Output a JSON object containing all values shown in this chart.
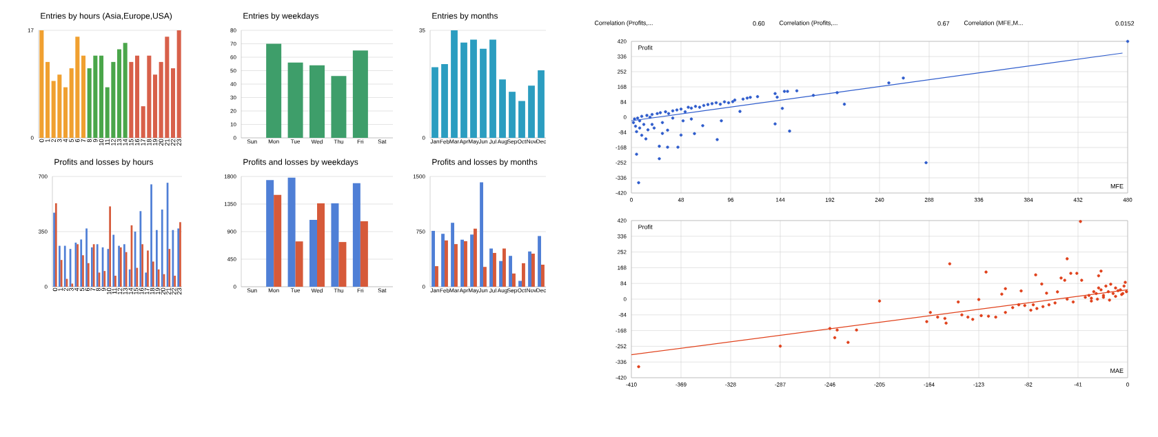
{
  "chart_data": [
    {
      "type": "bar",
      "title": "Entries by hours (Asia,Europe,USA)",
      "categories": [
        "0",
        "1",
        "2",
        "3",
        "4",
        "5",
        "6",
        "7",
        "8",
        "9",
        "10",
        "11",
        "12",
        "13",
        "14",
        "15",
        "16",
        "17",
        "18",
        "19",
        "20",
        "21",
        "22",
        "23"
      ],
      "values": [
        17,
        12,
        9,
        10,
        8,
        11,
        16,
        13,
        11,
        13,
        13,
        8,
        12,
        14,
        15,
        12,
        13,
        5,
        13,
        10,
        12,
        16,
        11,
        17
      ],
      "colors": [
        "#f0a030",
        "#f0a030",
        "#f0a030",
        "#f0a030",
        "#f0a030",
        "#f0a030",
        "#f0a030",
        "#f0a030",
        "#4aa64a",
        "#4aa64a",
        "#4aa64a",
        "#4aa64a",
        "#4aa64a",
        "#4aa64a",
        "#4aa64a",
        "#d8604a",
        "#d8604a",
        "#d8604a",
        "#d8604a",
        "#d8604a",
        "#d8604a",
        "#d8604a",
        "#d8604a",
        "#d8604a"
      ],
      "ylim": [
        0,
        17
      ],
      "yticks": [
        0,
        17
      ],
      "grid": "y"
    },
    {
      "type": "bar",
      "title": "Entries by weekdays",
      "categories": [
        "Sun",
        "Mon",
        "Tue",
        "Wed",
        "Thu",
        "Fri",
        "Sat"
      ],
      "values": [
        0,
        70,
        56,
        54,
        46,
        65,
        0
      ],
      "color": "#3e9e6a",
      "ylim": [
        0,
        80
      ],
      "yticks": [
        0,
        10,
        20,
        30,
        40,
        50,
        60,
        70,
        80
      ],
      "grid": "y"
    },
    {
      "type": "bar",
      "title": "Entries by months",
      "categories": [
        "Jan",
        "Feb",
        "Mar",
        "Apr",
        "May",
        "Jun",
        "Jul",
        "Aug",
        "Sep",
        "Oct",
        "Nov",
        "Dec"
      ],
      "values": [
        23,
        24,
        35,
        31,
        32,
        29,
        32,
        19,
        15,
        12,
        17,
        22
      ],
      "color": "#2b9dc0",
      "ylim": [
        0,
        35
      ],
      "yticks": [
        0,
        35
      ],
      "grid": "y"
    },
    {
      "type": "bar",
      "title": "Profits and losses by hours",
      "categories": [
        "0",
        "1",
        "2",
        "3",
        "4",
        "5",
        "6",
        "7",
        "8",
        "9",
        "10",
        "11",
        "12",
        "13",
        "14",
        "15",
        "16",
        "17",
        "18",
        "19",
        "20",
        "21",
        "22",
        "23"
      ],
      "series": [
        {
          "color": "#4f7fd6",
          "values": [
            470,
            260,
            260,
            240,
            280,
            300,
            370,
            250,
            270,
            250,
            240,
            330,
            260,
            270,
            110,
            350,
            480,
            90,
            650,
            360,
            490,
            660,
            360,
            370
          ]
        },
        {
          "color": "#d65a3a",
          "values": [
            530,
            170,
            50,
            20,
            270,
            200,
            150,
            270,
            90,
            100,
            510,
            70,
            250,
            220,
            390,
            120,
            270,
            230,
            160,
            110,
            80,
            240,
            70,
            410
          ]
        }
      ],
      "ylim": [
        0,
        700
      ],
      "yticks": [
        0,
        350,
        700
      ],
      "grid": "y"
    },
    {
      "type": "bar",
      "title": "Profits and losses by weekdays",
      "categories": [
        "Sun",
        "Mon",
        "Tue",
        "Wed",
        "Thu",
        "Fri",
        "Sat"
      ],
      "series": [
        {
          "color": "#4f7fd6",
          "values": [
            0,
            1740,
            1780,
            1090,
            1360,
            1690,
            0
          ]
        },
        {
          "color": "#d65a3a",
          "values": [
            0,
            1500,
            740,
            1360,
            730,
            1070,
            0
          ]
        }
      ],
      "ylim": [
        0,
        1800
      ],
      "yticks": [
        0,
        450,
        900,
        1350,
        1800
      ],
      "grid": "y"
    },
    {
      "type": "bar",
      "title": "Profits and losses by months",
      "categories": [
        "Jan",
        "Feb",
        "Mar",
        "Apr",
        "May",
        "Jun",
        "Jul",
        "Aug",
        "Sep",
        "Oct",
        "Nov",
        "Dec"
      ],
      "series": [
        {
          "color": "#4f7fd6",
          "values": [
            760,
            720,
            870,
            640,
            710,
            1420,
            520,
            350,
            420,
            80,
            480,
            690
          ]
        },
        {
          "color": "#d65a3a",
          "values": [
            280,
            630,
            580,
            620,
            790,
            270,
            460,
            520,
            180,
            320,
            450,
            300
          ]
        }
      ],
      "ylim": [
        0,
        1500
      ],
      "yticks": [
        0,
        750,
        1500
      ],
      "grid": "y"
    },
    {
      "type": "scatter",
      "xlabel": "MFE",
      "ylabel": "Profit",
      "grid": true,
      "annotations": [
        "Correlation (Profits,...",
        "0.60",
        "Correlation (Profits,...",
        "0.67",
        "Correlation (MFE,M...",
        "0.0152"
      ],
      "series": [
        {
          "color": "#2e5ccc",
          "marker": "circle",
          "x": [
            480,
            263,
            249,
            199,
            206,
            176,
            160,
            151,
            148,
            139,
            141,
            146,
            139,
            153,
            285,
            87,
            83,
            7,
            5,
            27,
            27,
            35,
            45,
            48,
            61,
            69,
            35,
            105,
            122,
            112,
            98,
            2,
            3,
            4,
            5,
            6,
            8,
            10,
            10,
            12,
            14,
            15,
            18,
            20,
            22,
            25,
            28,
            30,
            33,
            36,
            40,
            44,
            48,
            52,
            55,
            58,
            62,
            66,
            70,
            74,
            78,
            82,
            86,
            90,
            94,
            100,
            108,
            115,
            58,
            50,
            40,
            30,
            20,
            16,
            8
          ],
          "values": [
            420,
            217,
            190,
            136,
            72,
            121,
            146,
            143,
            143,
            131,
            111,
            49,
            -37,
            -77,
            -252,
            -20,
            -124,
            -363,
            -205,
            -161,
            -230,
            -166,
            -166,
            -99,
            -91,
            -47,
            -72,
            32,
            114,
            106,
            86,
            -30,
            -10,
            -50,
            -80,
            -5,
            -20,
            5,
            -100,
            -40,
            -120,
            10,
            0,
            15,
            -60,
            20,
            25,
            -30,
            30,
            20,
            35,
            40,
            45,
            30,
            55,
            50,
            60,
            55,
            65,
            70,
            75,
            80,
            72,
            85,
            80,
            95,
            100,
            110,
            -10,
            -20,
            -5,
            -90,
            -40,
            -70,
            -60
          ]
        },
        {
          "type": "line",
          "marker": "none",
          "color": "#2e5ccc",
          "x": [
            0,
            475
          ],
          "values": [
            -20,
            355
          ]
        }
      ],
      "xlim": [
        0,
        480
      ],
      "xticks": [
        0,
        48,
        96,
        144,
        192,
        240,
        288,
        336,
        384,
        432,
        480
      ],
      "ylim": [
        -420,
        420
      ],
      "yticks": [
        -420,
        -336,
        -252,
        -168,
        -84,
        0,
        84,
        168,
        252,
        336,
        420
      ]
    },
    {
      "type": "scatter",
      "xlabel": "MAE",
      "ylabel": "Profit",
      "grid": true,
      "series": [
        {
          "color": "#e0401a",
          "marker": "circle",
          "x": [
            -404,
            -287,
            -246,
            -242,
            -240,
            -231,
            -224,
            -205,
            -166,
            -163,
            -157,
            -151,
            -150,
            -147,
            -140,
            -137,
            -132,
            -128,
            -123,
            -121,
            -117,
            -115,
            -109,
            -104,
            -101,
            -101,
            -88,
            -85,
            -80,
            -76,
            -71,
            -67,
            -58,
            -55,
            -52,
            -50,
            -47,
            -39,
            -42,
            -38,
            -22,
            -24,
            -35,
            -32,
            -30,
            -28,
            -26,
            -24,
            -22,
            -20,
            -18,
            -16,
            -14,
            -12,
            -10,
            -8,
            -6,
            -4,
            -2,
            -1,
            -30,
            -25,
            -20,
            -15,
            -10,
            -5,
            -3,
            -60,
            -65,
            -70,
            -75,
            -78,
            -90,
            -95,
            -45,
            -50
          ],
          "values": [
            -361,
            -251,
            -157,
            -206,
            -165,
            -231,
            -165,
            -10,
            -120,
            -71,
            -96,
            -103,
            -128,
            189,
            -15,
            -84,
            -96,
            -108,
            -2,
            -88,
            145,
            -91,
            -96,
            27,
            56,
            -71,
            44,
            -34,
            -59,
            130,
            81,
            32,
            39,
            113,
            101,
            216,
            138,
            415,
            138,
            101,
            150,
            125,
            10,
            20,
            5,
            40,
            30,
            60,
            50,
            20,
            70,
            40,
            80,
            30,
            60,
            45,
            50,
            30,
            90,
            40,
            -10,
            0,
            10,
            -5,
            15,
            25,
            70,
            -20,
            -30,
            -40,
            -50,
            -30,
            -30,
            -45,
            -15,
            0
          ]
        },
        {
          "type": "line",
          "marker": "none",
          "color": "#e0401a",
          "x": [
            -410,
            0
          ],
          "values": [
            -297,
            50
          ]
        }
      ],
      "xlim": [
        -410,
        0
      ],
      "xticks": [
        -410,
        -369,
        -328,
        -287,
        -246,
        -205,
        -164,
        -123,
        -82,
        -41,
        0
      ],
      "ylim": [
        -420,
        420
      ],
      "yticks": [
        -420,
        -336,
        -252,
        -168,
        -84,
        0,
        84,
        168,
        252,
        336,
        420
      ]
    }
  ]
}
